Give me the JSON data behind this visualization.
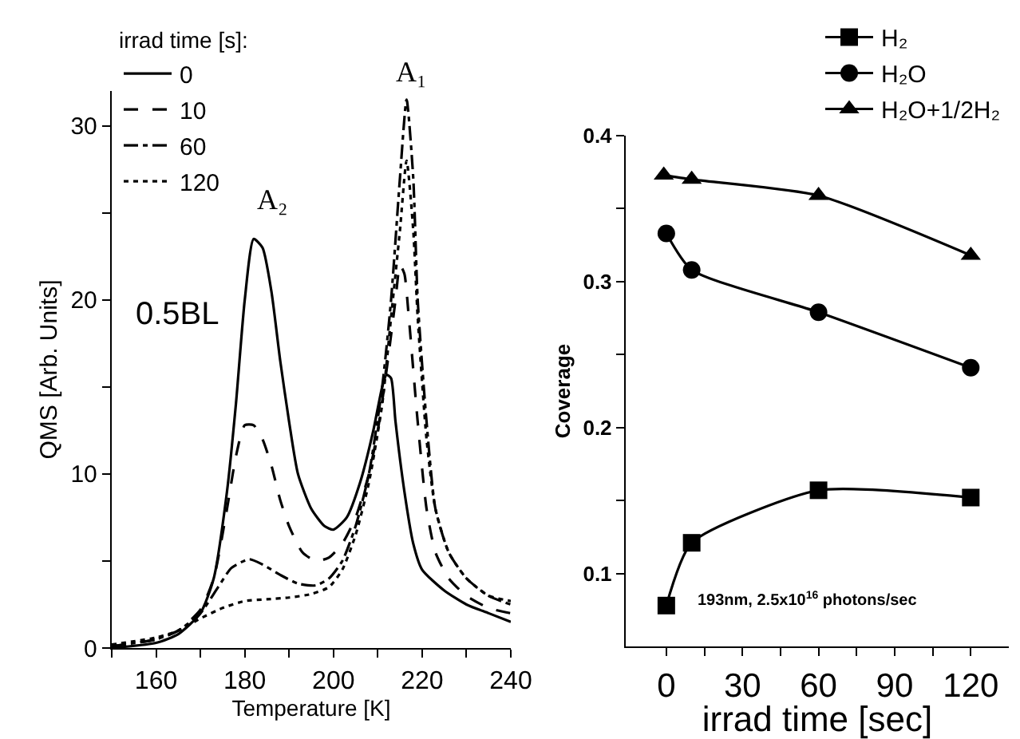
{
  "chart_data": [
    {
      "type": "line",
      "xlabel": "Temperature [K]",
      "ylabel": "QMS [Arb. Units]",
      "legend_title": "irrad time [s]:",
      "legend": "top left",
      "grid": false,
      "marker": "none",
      "xlim": [
        150,
        240
      ],
      "xticks": [
        {
          "value": 150,
          "label": null
        },
        160,
        {
          "value": 170,
          "label": null
        },
        180,
        {
          "value": 190,
          "label": null
        },
        200,
        {
          "value": 210,
          "label": null
        },
        220,
        {
          "value": 230,
          "label": null
        },
        240
      ],
      "ylim": [
        0,
        32
      ],
      "yticks": [
        0,
        {
          "value": 5,
          "label": null
        },
        10,
        {
          "value": 15,
          "label": null
        },
        20,
        {
          "value": 25,
          "label": null
        },
        30
      ],
      "annotations": [
        "A₁",
        "A₂",
        "0.5BL"
      ],
      "series": [
        {
          "name": "0",
          "color": "#000000",
          "line_style": "solid",
          "x": [
            150,
            160,
            165,
            170,
            173,
            176,
            178,
            180,
            182,
            184,
            186,
            188,
            190,
            192,
            195,
            198,
            200,
            203,
            206,
            209,
            211,
            212,
            213,
            214,
            216,
            218,
            220,
            225,
            230,
            235,
            240
          ],
          "values": [
            0,
            0.3,
            0.8,
            2,
            4,
            9,
            14,
            20,
            23.5,
            23,
            20.5,
            16.5,
            13,
            10,
            8,
            7,
            6.8,
            7.5,
            9.5,
            12.5,
            15,
            15.7,
            15.5,
            13,
            9,
            6,
            4.5,
            3.3,
            2.5,
            2,
            1.5
          ]
        },
        {
          "name": "10",
          "color": "#000000",
          "line_style": "dashed",
          "x": [
            150,
            160,
            165,
            170,
            173,
            176,
            178,
            180,
            182,
            184,
            186,
            188,
            190,
            193,
            196,
            199,
            202,
            205,
            208,
            210,
            212,
            214,
            215,
            216,
            217,
            219,
            221,
            223,
            226,
            230,
            235,
            240
          ],
          "values": [
            0.1,
            0.5,
            1,
            2.2,
            4,
            8,
            11,
            12.8,
            12.8,
            12,
            10.5,
            8.5,
            7,
            5.5,
            5,
            5.2,
            6,
            7.5,
            10,
            12.5,
            16,
            20,
            22,
            21.5,
            19,
            13,
            8,
            5.5,
            4,
            3,
            2.3,
            2
          ]
        },
        {
          "name": "60",
          "color": "#000000",
          "line_style": "dashdot",
          "x": [
            150,
            160,
            165,
            170,
            174,
            177,
            181,
            184,
            188,
            192,
            196,
            199,
            202,
            205,
            208,
            211,
            213,
            215,
            216.5,
            218,
            219,
            221,
            223,
            226,
            230,
            235,
            240
          ],
          "values": [
            0.1,
            0.5,
            1,
            2,
            3.5,
            4.6,
            5.1,
            4.8,
            4.2,
            3.7,
            3.6,
            4,
            5,
            7,
            10,
            15,
            20,
            27,
            31.5,
            27,
            20,
            13,
            8,
            5.5,
            4,
            3,
            2.5
          ]
        },
        {
          "name": "120",
          "color": "#000000",
          "line_style": "dotted",
          "x": [
            150,
            160,
            165,
            170,
            175,
            180,
            185,
            190,
            195,
            199,
            202,
            205,
            208,
            211,
            213,
            215,
            216.5,
            218,
            219,
            221,
            223,
            226,
            230,
            235,
            240
          ],
          "values": [
            0.2,
            0.6,
            1,
            1.7,
            2.3,
            2.7,
            2.8,
            2.9,
            3.1,
            3.5,
            4.5,
            6.5,
            9.5,
            14,
            19,
            24,
            28,
            24,
            19,
            12,
            8,
            5.5,
            4,
            3,
            2.7
          ]
        }
      ]
    },
    {
      "type": "line",
      "xlabel": "irrad time [sec]",
      "ylabel": "Coverage",
      "legend": "top right",
      "grid": false,
      "x": [
        0,
        10,
        60,
        120
      ],
      "xlim": [
        -16,
        135
      ],
      "xticks": [
        0,
        {
          "value": 15,
          "label": null
        },
        30,
        {
          "value": 45,
          "label": null
        },
        60,
        {
          "value": 75,
          "label": null
        },
        90,
        {
          "value": 105,
          "label": null
        },
        120
      ],
      "ylim": [
        0.05,
        0.4
      ],
      "yticks": [
        0.1,
        {
          "value": 0.15,
          "label": null
        },
        0.2,
        {
          "value": 0.25,
          "label": null
        },
        0.3,
        {
          "value": 0.35,
          "label": null
        },
        0.4
      ],
      "annotations": [
        "193nm, 2.5x10$^{16}$ photons/sec"
      ],
      "series": [
        {
          "name": "H₂",
          "color": "#000000",
          "marker": "square",
          "values": [
            0.078,
            0.121,
            0.157,
            0.152
          ]
        },
        {
          "name": "H₂O",
          "color": "#000000",
          "marker": "circle",
          "values": [
            0.333,
            0.308,
            0.279,
            0.241
          ]
        },
        {
          "name": "H₂O+1/2H₂",
          "color": "#000000",
          "marker": "triangle",
          "x": [
            -1,
            10,
            60,
            120
          ],
          "values": [
            0.373,
            0.37,
            0.359,
            0.318
          ]
        }
      ]
    }
  ]
}
